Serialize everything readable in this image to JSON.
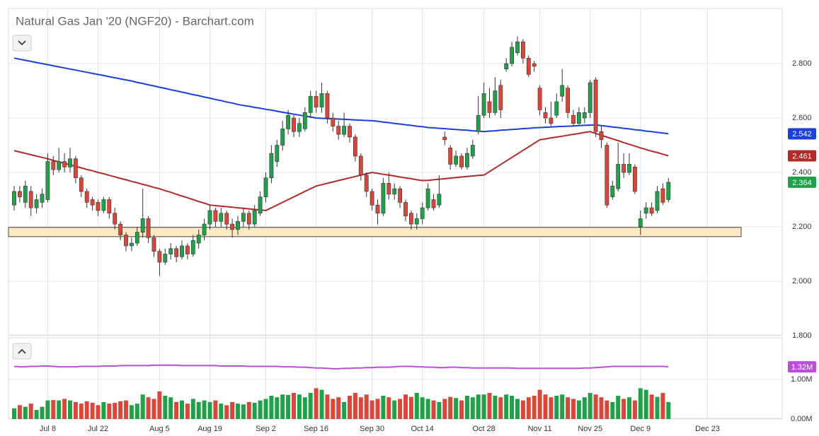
{
  "chart_data": {
    "type": "candlestick",
    "title": "Natural Gas Jan '20 (NGF20) - Barchart.com",
    "categories": [
      null,
      null,
      null,
      null,
      null,
      null,
      "Jul 8",
      null,
      null,
      null,
      null,
      null,
      null,
      null,
      null,
      "Jul 22",
      null,
      null,
      null,
      null,
      null,
      null,
      null,
      null,
      null,
      null,
      "Aug 5",
      null,
      null,
      null,
      null,
      null,
      null,
      null,
      null,
      "Aug 19",
      null,
      null,
      null,
      null,
      null,
      null,
      null,
      null,
      null,
      "Sep 2",
      null,
      null,
      null,
      null,
      null,
      null,
      null,
      null,
      "Sep 16",
      null,
      null,
      null,
      null,
      null,
      null,
      null,
      null,
      null,
      "Sep 30",
      null,
      null,
      null,
      null,
      null,
      null,
      null,
      null,
      "Oct 14",
      null,
      null,
      null,
      null,
      null,
      null,
      null,
      null,
      null,
      null,
      "Oct 28",
      null,
      null,
      null,
      null,
      null,
      null,
      null,
      null,
      null,
      "Nov 11",
      null,
      null,
      null,
      null,
      null,
      null,
      null,
      null,
      "Nov 25",
      null,
      null,
      null,
      null,
      null,
      null,
      null,
      null,
      "Dec 9",
      null,
      null,
      null,
      null,
      null,
      null,
      null,
      null,
      null,
      null,
      null,
      "Dec 23"
    ],
    "open": [
      2.28,
      2.33,
      2.29,
      2.33,
      2.27,
      2.29,
      2.3,
      2.44,
      2.41,
      2.44,
      2.42,
      2.45,
      2.38,
      2.33,
      2.3,
      2.29,
      2.26,
      2.3,
      2.25,
      2.21,
      2.17,
      2.13,
      2.14,
      2.18,
      2.23,
      2.16,
      2.11,
      2.07,
      2.1,
      2.12,
      2.09,
      2.13,
      2.1,
      2.14,
      2.17,
      2.21,
      2.26,
      2.22,
      2.25,
      2.21,
      2.19,
      2.22,
      2.25,
      2.21,
      2.25,
      2.31,
      2.38,
      2.44,
      2.5,
      2.56,
      2.6,
      2.55,
      2.56,
      2.62,
      2.68,
      2.64,
      2.69,
      2.6,
      2.57,
      2.54,
      2.57,
      2.53,
      2.46,
      2.39,
      2.33,
      2.28,
      2.25,
      2.36,
      2.32,
      2.34,
      2.29,
      2.25,
      2.21,
      2.23,
      2.27,
      2.3,
      2.28,
      2.53,
      2.49,
      2.43,
      2.46,
      2.42,
      2.46,
      2.55,
      2.61,
      2.66,
      2.62,
      2.72,
      2.78,
      2.8,
      2.84,
      2.88,
      2.82,
      2.8,
      2.71,
      2.62,
      2.6,
      2.61,
      2.68,
      2.71,
      2.61,
      2.58,
      2.6,
      2.62,
      2.74,
      2.55,
      2.5,
      2.31,
      2.34,
      2.43,
      2.4,
      2.42,
      2.2,
      2.25,
      2.27,
      2.26,
      2.34,
      2.3,
      null,
      null,
      null,
      null,
      null,
      null,
      null
    ],
    "high": [
      2.35,
      2.35,
      2.37,
      2.35,
      2.32,
      2.34,
      2.47,
      2.46,
      2.49,
      2.47,
      2.49,
      2.46,
      2.39,
      2.34,
      2.31,
      2.3,
      2.31,
      2.31,
      2.27,
      2.22,
      2.18,
      2.16,
      2.2,
      2.34,
      2.24,
      2.17,
      2.12,
      2.12,
      2.14,
      2.13,
      2.15,
      2.14,
      2.17,
      2.19,
      2.23,
      2.28,
      2.27,
      2.27,
      2.26,
      2.23,
      2.24,
      2.27,
      2.26,
      2.28,
      2.33,
      2.4,
      2.5,
      2.52,
      2.59,
      2.63,
      2.61,
      2.6,
      2.64,
      2.7,
      2.7,
      2.73,
      2.7,
      2.62,
      2.59,
      2.62,
      2.58,
      2.54,
      2.47,
      2.4,
      2.34,
      2.3,
      2.38,
      2.4,
      2.36,
      2.35,
      2.3,
      2.26,
      2.25,
      2.29,
      2.36,
      2.32,
      2.39,
      2.55,
      2.5,
      2.48,
      2.47,
      2.49,
      2.52,
      2.68,
      2.73,
      2.71,
      2.75,
      2.74,
      2.82,
      2.88,
      2.9,
      2.89,
      2.83,
      2.81,
      2.72,
      2.64,
      2.66,
      2.69,
      2.78,
      2.72,
      2.63,
      2.64,
      2.64,
      2.74,
      2.75,
      2.57,
      2.51,
      2.37,
      2.51,
      2.47,
      2.47,
      2.43,
      2.26,
      2.29,
      2.29,
      2.35,
      2.36,
      2.38,
      null,
      null,
      null,
      null,
      null,
      null,
      null
    ],
    "low": [
      2.26,
      2.29,
      2.27,
      2.24,
      2.25,
      2.27,
      2.29,
      2.39,
      2.4,
      2.4,
      2.4,
      2.36,
      2.31,
      2.27,
      2.26,
      2.24,
      2.25,
      2.23,
      2.19,
      2.15,
      2.11,
      2.11,
      2.13,
      2.16,
      2.14,
      2.09,
      2.02,
      2.06,
      2.08,
      2.07,
      2.08,
      2.08,
      2.09,
      2.12,
      2.15,
      2.19,
      2.2,
      2.2,
      2.19,
      2.16,
      2.17,
      2.2,
      2.19,
      2.2,
      2.24,
      2.29,
      2.36,
      2.42,
      2.48,
      2.54,
      2.53,
      2.53,
      2.55,
      2.6,
      2.62,
      2.62,
      2.58,
      2.55,
      2.52,
      2.53,
      2.51,
      2.44,
      2.37,
      2.31,
      2.26,
      2.21,
      2.24,
      2.3,
      2.3,
      2.27,
      2.22,
      2.19,
      2.19,
      2.21,
      2.26,
      2.26,
      2.27,
      2.5,
      2.41,
      2.42,
      2.41,
      2.41,
      2.45,
      2.54,
      2.6,
      2.6,
      2.61,
      2.6,
      2.77,
      2.79,
      2.83,
      2.8,
      2.75,
      2.77,
      2.61,
      2.58,
      2.57,
      2.6,
      2.66,
      2.6,
      2.57,
      2.57,
      2.58,
      2.6,
      2.53,
      2.49,
      2.27,
      2.3,
      2.33,
      2.38,
      2.39,
      2.32,
      2.17,
      2.23,
      2.24,
      2.25,
      2.28,
      2.29,
      null,
      null,
      null,
      null,
      null,
      null,
      null
    ],
    "close": [
      2.33,
      2.31,
      2.35,
      2.27,
      2.3,
      2.32,
      2.44,
      2.41,
      2.44,
      2.42,
      2.45,
      2.38,
      2.33,
      2.29,
      2.28,
      2.26,
      2.3,
      2.25,
      2.21,
      2.17,
      2.13,
      2.14,
      2.18,
      2.23,
      2.16,
      2.11,
      2.07,
      2.1,
      2.12,
      2.09,
      2.13,
      2.1,
      2.15,
      2.17,
      2.21,
      2.26,
      2.22,
      2.25,
      2.21,
      2.19,
      2.22,
      2.25,
      2.21,
      2.26,
      2.31,
      2.38,
      2.47,
      2.5,
      2.56,
      2.61,
      2.55,
      2.58,
      2.62,
      2.68,
      2.64,
      2.69,
      2.6,
      2.57,
      2.54,
      2.57,
      2.53,
      2.46,
      2.39,
      2.33,
      2.28,
      2.25,
      2.36,
      2.32,
      2.34,
      2.29,
      2.24,
      2.21,
      2.23,
      2.27,
      2.34,
      2.27,
      2.32,
      2.52,
      2.43,
      2.46,
      2.42,
      2.47,
      2.5,
      2.61,
      2.69,
      2.62,
      2.7,
      2.63,
      2.8,
      2.86,
      2.88,
      2.82,
      2.76,
      2.79,
      2.63,
      2.6,
      2.58,
      2.66,
      2.72,
      2.62,
      2.58,
      2.62,
      2.62,
      2.73,
      2.55,
      2.52,
      2.28,
      2.35,
      2.43,
      2.4,
      2.43,
      2.33,
      2.23,
      2.27,
      2.25,
      2.33,
      2.29,
      2.364,
      null,
      null,
      null,
      null,
      null,
      null,
      null
    ],
    "up_color": "#21a04a",
    "down_color": "#d9473a",
    "ylim": [
      1.8,
      3.0
    ],
    "yticks": [
      {
        "value": 1.8,
        "label": "1.800"
      },
      {
        "value": 2.0,
        "label": "2.000"
      },
      {
        "value": 2.2,
        "label": "2.200"
      },
      {
        "value": 2.4,
        "label": "2.400"
      },
      {
        "value": 2.6,
        "label": "2.600"
      },
      {
        "value": 2.8,
        "label": "2.800"
      }
    ],
    "grid": true,
    "zone": {
      "values": [
        2.164,
        2.198
      ],
      "color": "#fde9c4"
    },
    "series": [
      {
        "color": "#1a3fdc",
        "values": [
          2.82,
          2.816,
          2.812,
          2.808,
          2.804,
          2.8,
          2.796,
          2.792,
          2.788,
          2.784,
          2.78,
          2.776,
          2.772,
          2.768,
          2.764,
          2.76,
          2.756,
          2.752,
          2.748,
          2.744,
          2.74,
          2.736,
          2.731,
          2.727,
          2.722,
          2.718,
          2.713,
          2.709,
          2.704,
          2.7,
          2.695,
          2.691,
          2.686,
          2.682,
          2.677,
          2.673,
          2.668,
          2.664,
          2.659,
          2.655,
          2.65,
          2.646,
          2.643,
          2.639,
          2.636,
          2.632,
          2.629,
          2.625,
          2.621,
          2.618,
          2.614,
          2.611,
          2.607,
          2.604,
          2.6,
          2.599,
          2.598,
          2.597,
          2.596,
          2.595,
          2.594,
          2.593,
          2.592,
          2.591,
          2.59,
          2.588,
          2.585,
          2.583,
          2.58,
          2.578,
          2.575,
          2.573,
          2.57,
          2.568,
          2.565,
          2.564,
          2.562,
          2.561,
          2.559,
          2.558,
          2.556,
          2.555,
          2.553,
          2.552,
          2.55,
          2.552,
          2.553,
          2.555,
          2.556,
          2.558,
          2.559,
          2.561,
          2.562,
          2.564,
          2.565,
          2.566,
          2.567,
          2.568,
          2.569,
          2.57,
          2.571,
          2.572,
          2.573,
          2.574,
          2.575,
          2.572,
          2.57,
          2.567,
          2.565,
          2.562,
          2.56,
          2.557,
          2.555,
          2.552,
          2.55,
          2.547,
          2.545,
          2.542,
          null,
          null,
          null,
          null,
          null,
          null,
          null
        ]
      },
      {
        "color": "#b22a2a",
        "values": [
          2.48,
          2.475,
          2.47,
          2.465,
          2.46,
          2.455,
          2.45,
          2.444,
          2.439,
          2.433,
          2.428,
          2.422,
          2.417,
          2.411,
          2.406,
          2.4,
          2.395,
          2.389,
          2.384,
          2.378,
          2.373,
          2.367,
          2.362,
          2.356,
          2.351,
          2.345,
          2.34,
          2.333,
          2.327,
          2.32,
          2.313,
          2.307,
          2.3,
          2.293,
          2.287,
          2.28,
          2.278,
          2.276,
          2.274,
          2.272,
          2.27,
          2.268,
          2.266,
          2.264,
          2.262,
          2.26,
          2.27,
          2.28,
          2.29,
          2.3,
          2.31,
          2.32,
          2.33,
          2.34,
          2.35,
          2.355,
          2.36,
          2.365,
          2.37,
          2.375,
          2.38,
          2.385,
          2.39,
          2.395,
          2.4,
          2.397,
          2.393,
          2.39,
          2.387,
          2.383,
          2.38,
          2.377,
          2.373,
          2.37,
          2.371,
          2.373,
          2.375,
          2.377,
          2.379,
          2.381,
          2.383,
          2.385,
          2.387,
          2.389,
          2.39,
          2.403,
          2.416,
          2.429,
          2.442,
          2.455,
          2.468,
          2.481,
          2.494,
          2.507,
          2.52,
          2.523,
          2.527,
          2.53,
          2.533,
          2.537,
          2.54,
          2.543,
          2.547,
          2.55,
          2.543,
          2.537,
          2.53,
          2.523,
          2.517,
          2.51,
          2.503,
          2.497,
          2.49,
          2.484,
          2.478,
          2.473,
          2.467,
          2.461,
          null,
          null,
          null,
          null,
          null,
          null,
          null
        ]
      }
    ],
    "volume": {
      "type": "bar",
      "values": [
        0.27,
        0.35,
        0.31,
        0.39,
        0.23,
        0.31,
        0.47,
        0.48,
        0.47,
        0.51,
        0.47,
        0.43,
        0.39,
        0.45,
        0.41,
        0.35,
        0.43,
        0.39,
        0.41,
        0.45,
        0.47,
        0.35,
        0.39,
        0.62,
        0.55,
        0.51,
        0.7,
        0.59,
        0.55,
        0.43,
        0.47,
        0.39,
        0.51,
        0.43,
        0.47,
        0.43,
        0.47,
        0.39,
        0.35,
        0.43,
        0.39,
        0.37,
        0.43,
        0.41,
        0.47,
        0.51,
        0.59,
        0.55,
        0.62,
        0.61,
        0.66,
        0.62,
        0.55,
        0.66,
        0.78,
        0.74,
        0.62,
        0.51,
        0.55,
        0.43,
        0.59,
        0.66,
        0.55,
        0.62,
        0.47,
        0.51,
        0.59,
        0.55,
        0.47,
        0.51,
        0.62,
        0.56,
        0.66,
        0.55,
        0.51,
        0.47,
        0.43,
        0.51,
        0.56,
        0.53,
        0.47,
        0.59,
        0.55,
        0.62,
        0.62,
        0.66,
        0.59,
        0.55,
        0.62,
        0.59,
        0.51,
        0.47,
        0.55,
        0.59,
        0.74,
        0.62,
        0.55,
        0.59,
        0.62,
        0.55,
        0.51,
        0.47,
        0.55,
        0.66,
        0.62,
        0.55,
        0.47,
        0.43,
        0.59,
        0.51,
        0.55,
        0.47,
        0.78,
        0.74,
        0.62,
        0.56,
        0.66,
        0.43,
        null,
        null,
        null,
        null,
        null,
        null,
        null
      ],
      "ylim": [
        0,
        2
      ],
      "yticks": [
        {
          "value": 0,
          "label": "0.00M"
        },
        {
          "value": 1,
          "label": "1.00M"
        }
      ],
      "series": [
        {
          "color": "#b84fd6",
          "values": [
            1.33,
            1.32,
            1.32,
            1.33,
            1.33,
            1.34,
            1.34,
            1.33,
            1.32,
            1.32,
            1.32,
            1.32,
            1.33,
            1.33,
            1.33,
            1.33,
            1.34,
            1.34,
            1.34,
            1.35,
            1.35,
            1.35,
            1.35,
            1.35,
            1.35,
            1.36,
            1.36,
            1.36,
            1.36,
            1.36,
            1.35,
            1.35,
            1.35,
            1.35,
            1.35,
            1.35,
            1.35,
            1.34,
            1.34,
            1.34,
            1.34,
            1.34,
            1.33,
            1.33,
            1.33,
            1.33,
            1.33,
            1.33,
            1.32,
            1.32,
            1.32,
            1.31,
            1.31,
            1.3,
            1.29,
            1.29,
            1.28,
            1.27,
            1.27,
            1.28,
            1.28,
            1.29,
            1.29,
            1.3,
            1.3,
            1.31,
            1.31,
            1.31,
            1.32,
            1.33,
            1.33,
            1.33,
            1.32,
            1.32,
            1.31,
            1.31,
            1.3,
            1.3,
            1.31,
            1.31,
            1.3,
            1.3,
            1.29,
            1.29,
            1.29,
            1.29,
            1.29,
            1.29,
            1.29,
            1.29,
            1.28,
            1.28,
            1.28,
            1.28,
            1.28,
            1.28,
            1.28,
            1.28,
            1.28,
            1.28,
            1.28,
            1.28,
            1.29,
            1.29,
            1.3,
            1.31,
            1.32,
            1.33,
            1.33,
            1.33,
            1.33,
            1.33,
            1.33,
            1.33,
            1.33,
            1.33,
            1.33,
            1.32,
            null,
            null,
            null,
            null,
            null,
            null,
            null
          ],
          "value_labels": [
            null,
            null,
            null,
            null,
            null,
            null,
            null,
            null,
            null,
            null,
            null,
            null,
            null,
            null,
            null,
            null,
            null,
            null,
            null,
            null,
            null,
            null,
            null,
            null,
            null,
            null,
            null,
            null,
            null,
            null,
            null,
            null,
            null,
            null,
            null,
            null,
            null,
            null,
            null,
            null,
            null,
            null,
            null,
            null,
            null,
            null,
            null,
            null,
            null,
            null,
            null,
            null,
            null,
            null,
            null,
            null,
            null,
            null,
            null,
            null,
            null,
            null,
            null,
            null,
            null,
            null,
            null,
            null,
            null,
            null,
            null,
            null,
            null,
            null,
            null,
            null,
            null,
            null,
            null,
            null,
            null,
            null,
            null,
            null,
            null,
            null,
            null,
            null,
            null,
            null,
            null,
            null,
            null,
            null,
            null,
            null,
            null,
            null,
            null,
            null,
            null,
            null,
            null,
            null,
            null,
            null,
            null,
            null,
            null,
            null,
            null,
            null,
            null,
            null,
            null,
            null,
            null,
            "1.32M",
            null,
            null,
            null,
            null,
            null,
            null,
            null
          ]
        }
      ]
    }
  }
}
